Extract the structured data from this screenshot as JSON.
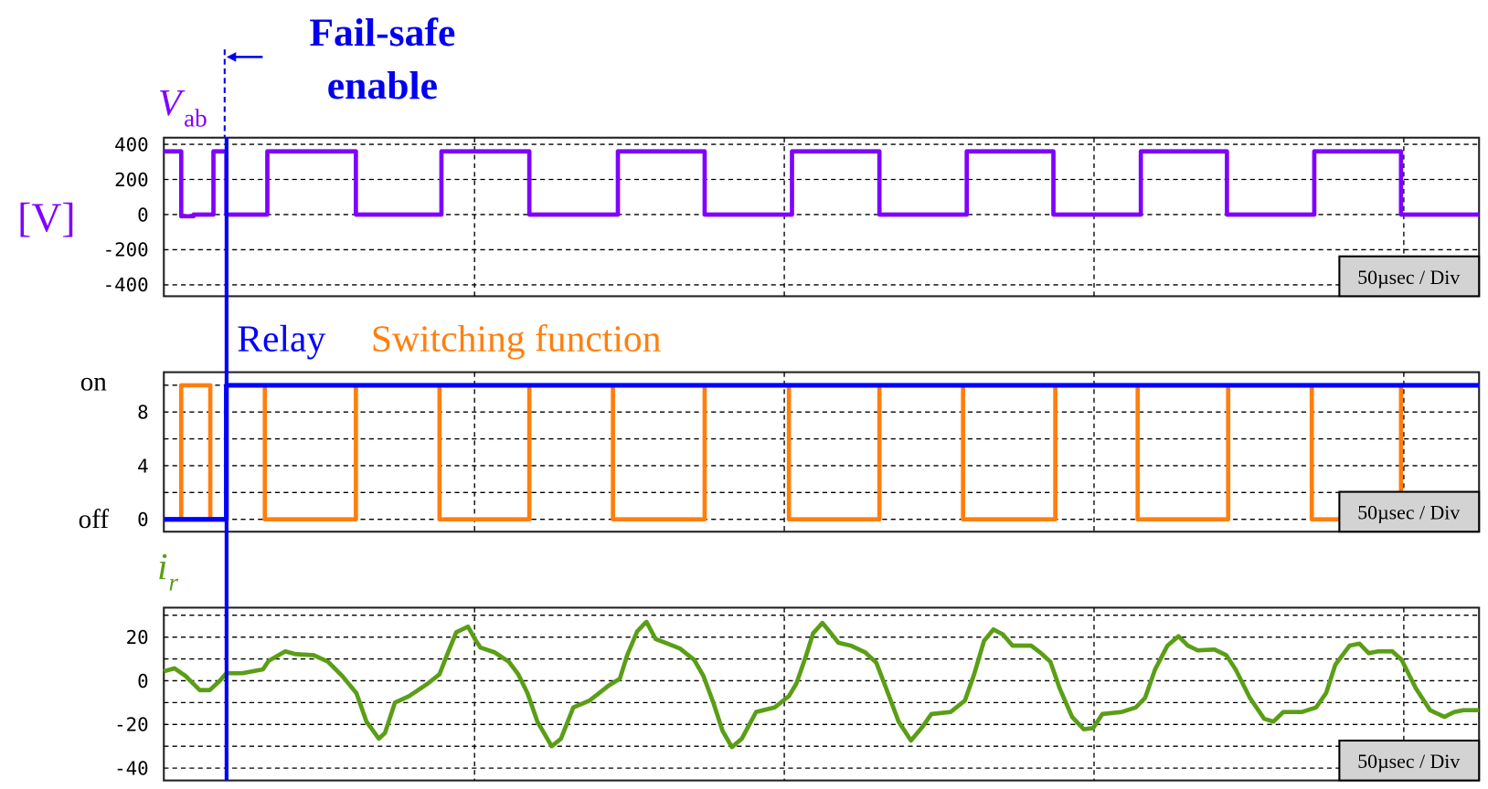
{
  "annotation": {
    "line1": "Fail-safe",
    "line2": "enable",
    "color": "#0000ee",
    "time_us": 10.1
  },
  "time_scale_label": "50µsec / Div",
  "colors": {
    "vab": "#8000ff",
    "switching": "#ff7f0e",
    "relay": "#0000ff",
    "current": "#5a9e16"
  },
  "chart_data": [
    {
      "type": "line",
      "title": "",
      "label_main": "V",
      "label_sub": "ab",
      "ylabel": "[V]",
      "yticks": [
        "400",
        "200",
        "0",
        "-200",
        "-400"
      ],
      "ylim": [
        -440,
        460
      ],
      "xlim_us": [
        0,
        212.3
      ],
      "grid": true,
      "series": [
        {
          "key": "vab",
          "points": [
            [
              0,
              360
            ],
            [
              2.8,
              360
            ],
            [
              2.8,
              -10
            ],
            [
              4.8,
              -10
            ],
            [
              4.8,
              0
            ],
            [
              8.0,
              0
            ],
            [
              8.0,
              360
            ],
            [
              10.1,
              360
            ],
            [
              10.1,
              0
            ],
            [
              16.7,
              0
            ],
            [
              16.7,
              360
            ],
            [
              31.0,
              360
            ],
            [
              31.0,
              0
            ],
            [
              44.8,
              0
            ],
            [
              44.8,
              360
            ],
            [
              59.0,
              360
            ],
            [
              59.0,
              0
            ],
            [
              73.3,
              0
            ],
            [
              73.3,
              360
            ],
            [
              87.3,
              360
            ],
            [
              87.3,
              0
            ],
            [
              101.4,
              0
            ],
            [
              101.4,
              360
            ],
            [
              115.5,
              360
            ],
            [
              115.5,
              0
            ],
            [
              129.6,
              0
            ],
            [
              129.6,
              360
            ],
            [
              143.6,
              360
            ],
            [
              143.6,
              0
            ],
            [
              157.7,
              0
            ],
            [
              157.7,
              360
            ],
            [
              171.6,
              360
            ],
            [
              171.6,
              0
            ],
            [
              185.7,
              0
            ],
            [
              185.7,
              360
            ],
            [
              199.7,
              360
            ],
            [
              199.7,
              0
            ],
            [
              212.3,
              0
            ]
          ]
        }
      ]
    },
    {
      "type": "line",
      "title": "",
      "legend": [
        {
          "name": "Relay",
          "key": "relay"
        },
        {
          "name": "Switching function",
          "key": "switching"
        }
      ],
      "state_labels": {
        "on": "on",
        "off": "off"
      },
      "yticks": [
        "8",
        "4",
        "0"
      ],
      "ylim": [
        -0.9,
        11.0
      ],
      "xlim_us": [
        0,
        212.3
      ],
      "grid": true,
      "series": [
        {
          "key": "switching",
          "points": [
            [
              0,
              0
            ],
            [
              2.8,
              0
            ],
            [
              2.8,
              10
            ],
            [
              7.5,
              10
            ],
            [
              7.5,
              0
            ],
            [
              10.1,
              0
            ],
            [
              10.1,
              10
            ],
            [
              16.3,
              10
            ],
            [
              16.3,
              0
            ],
            [
              31.0,
              0
            ],
            [
              31.0,
              10
            ],
            [
              44.5,
              10
            ],
            [
              44.5,
              0
            ],
            [
              59.0,
              0
            ],
            [
              59.0,
              10
            ],
            [
              72.5,
              10
            ],
            [
              72.5,
              0
            ],
            [
              87.3,
              0
            ],
            [
              87.3,
              10
            ],
            [
              100.9,
              10
            ],
            [
              100.9,
              0
            ],
            [
              115.5,
              0
            ],
            [
              115.5,
              10
            ],
            [
              129.0,
              10
            ],
            [
              129.0,
              0
            ],
            [
              143.9,
              0
            ],
            [
              143.9,
              10
            ],
            [
              157.2,
              10
            ],
            [
              157.2,
              0
            ],
            [
              171.8,
              0
            ],
            [
              171.8,
              10
            ],
            [
              185.3,
              10
            ],
            [
              185.3,
              0
            ],
            [
              199.7,
              0
            ],
            [
              199.7,
              10
            ],
            [
              212.3,
              10
            ]
          ]
        },
        {
          "key": "relay",
          "points": [
            [
              0,
              0
            ],
            [
              10.1,
              0
            ],
            [
              10.1,
              10
            ],
            [
              212.3,
              10
            ]
          ]
        }
      ]
    },
    {
      "type": "line",
      "title": "",
      "label_main": "i",
      "label_sub": "r",
      "yticks": [
        "20",
        "0",
        "-20",
        "-40"
      ],
      "ylim": [
        -45,
        33
      ],
      "xlim_us": [
        0,
        212.3
      ],
      "grid": true,
      "series": [
        {
          "key": "current",
          "points": [
            [
              0,
              4.3
            ],
            [
              1.7,
              5.7
            ],
            [
              3.5,
              2.2
            ],
            [
              5.8,
              -4.3
            ],
            [
              7.4,
              -4.3
            ],
            [
              8.9,
              -0.4
            ],
            [
              10.1,
              3.5
            ],
            [
              12.7,
              3.5
            ],
            [
              16.0,
              5.2
            ],
            [
              16.9,
              9.1
            ],
            [
              19.6,
              13.5
            ],
            [
              21.2,
              12.2
            ],
            [
              24.2,
              11.7
            ],
            [
              26.5,
              8.7
            ],
            [
              28.8,
              2.2
            ],
            [
              31.1,
              -5.7
            ],
            [
              32.7,
              -18.7
            ],
            [
              34.7,
              -26.5
            ],
            [
              35.7,
              -23.9
            ],
            [
              37.3,
              -10
            ],
            [
              39.6,
              -7
            ],
            [
              42.6,
              -1.3
            ],
            [
              44.5,
              3
            ],
            [
              45.7,
              11.7
            ],
            [
              47.2,
              22.2
            ],
            [
              49.1,
              24.8
            ],
            [
              50.3,
              18.7
            ],
            [
              51.1,
              15.2
            ],
            [
              53.4,
              13
            ],
            [
              55.7,
              8.7
            ],
            [
              57.2,
              3
            ],
            [
              58.7,
              -5.7
            ],
            [
              60.3,
              -18.7
            ],
            [
              62.6,
              -30
            ],
            [
              64.1,
              -26.5
            ],
            [
              66.1,
              -12.2
            ],
            [
              68.7,
              -9.1
            ],
            [
              71.8,
              -2.2
            ],
            [
              73.6,
              0.9
            ],
            [
              74.8,
              11.7
            ],
            [
              76.4,
              22.6
            ],
            [
              77.9,
              27
            ],
            [
              79.4,
              19.1
            ],
            [
              81.0,
              17.4
            ],
            [
              83.3,
              14.8
            ],
            [
              85.6,
              9.6
            ],
            [
              87.1,
              2.2
            ],
            [
              88.7,
              -10
            ],
            [
              90.2,
              -23
            ],
            [
              91.7,
              -30.4
            ],
            [
              93.3,
              -26.5
            ],
            [
              95.6,
              -14.3
            ],
            [
              98.6,
              -12.2
            ],
            [
              100.9,
              -7
            ],
            [
              102.1,
              -1.3
            ],
            [
              103.7,
              11.7
            ],
            [
              104.8,
              21.7
            ],
            [
              106.3,
              26.5
            ],
            [
              107.8,
              21.3
            ],
            [
              108.9,
              17.4
            ],
            [
              110.9,
              16.1
            ],
            [
              113.2,
              13
            ],
            [
              115.0,
              8.3
            ],
            [
              116.6,
              -3.5
            ],
            [
              118.6,
              -18.7
            ],
            [
              120.6,
              -27.4
            ],
            [
              122.4,
              -21.3
            ],
            [
              123.9,
              -15.2
            ],
            [
              127.0,
              -14.3
            ],
            [
              129.3,
              -9.1
            ],
            [
              130.8,
              3
            ],
            [
              132.4,
              18.3
            ],
            [
              133.9,
              23.5
            ],
            [
              135.4,
              21.3
            ],
            [
              137.0,
              16.1
            ],
            [
              140.0,
              16.1
            ],
            [
              141.6,
              12.6
            ],
            [
              143.1,
              8.7
            ],
            [
              144.6,
              -3.5
            ],
            [
              146.6,
              -16.5
            ],
            [
              148.5,
              -22.2
            ],
            [
              150.0,
              -21.7
            ],
            [
              151.5,
              -15.2
            ],
            [
              154.6,
              -14.3
            ],
            [
              156.9,
              -12.2
            ],
            [
              158.4,
              -7.8
            ],
            [
              160.0,
              5.2
            ],
            [
              162.0,
              16.1
            ],
            [
              163.8,
              20.4
            ],
            [
              165.3,
              16.1
            ],
            [
              166.9,
              13.9
            ],
            [
              169.6,
              14.3
            ],
            [
              171.5,
              11.7
            ],
            [
              173.0,
              5.2
            ],
            [
              175.3,
              -7.8
            ],
            [
              177.6,
              -17.4
            ],
            [
              179.1,
              -18.7
            ],
            [
              180.7,
              -14.3
            ],
            [
              183.7,
              -14.3
            ],
            [
              186.0,
              -12.2
            ],
            [
              187.6,
              -5.7
            ],
            [
              189.1,
              7.4
            ],
            [
              191.4,
              16.1
            ],
            [
              193.0,
              17
            ],
            [
              194.5,
              12.6
            ],
            [
              196.0,
              13.5
            ],
            [
              198.3,
              13.5
            ],
            [
              199.8,
              9.6
            ],
            [
              202.1,
              -3.5
            ],
            [
              204.4,
              -13.5
            ],
            [
              206.7,
              -16.5
            ],
            [
              208.3,
              -14.3
            ],
            [
              209.8,
              -13.5
            ],
            [
              212.3,
              -13.5
            ]
          ]
        }
      ]
    }
  ]
}
